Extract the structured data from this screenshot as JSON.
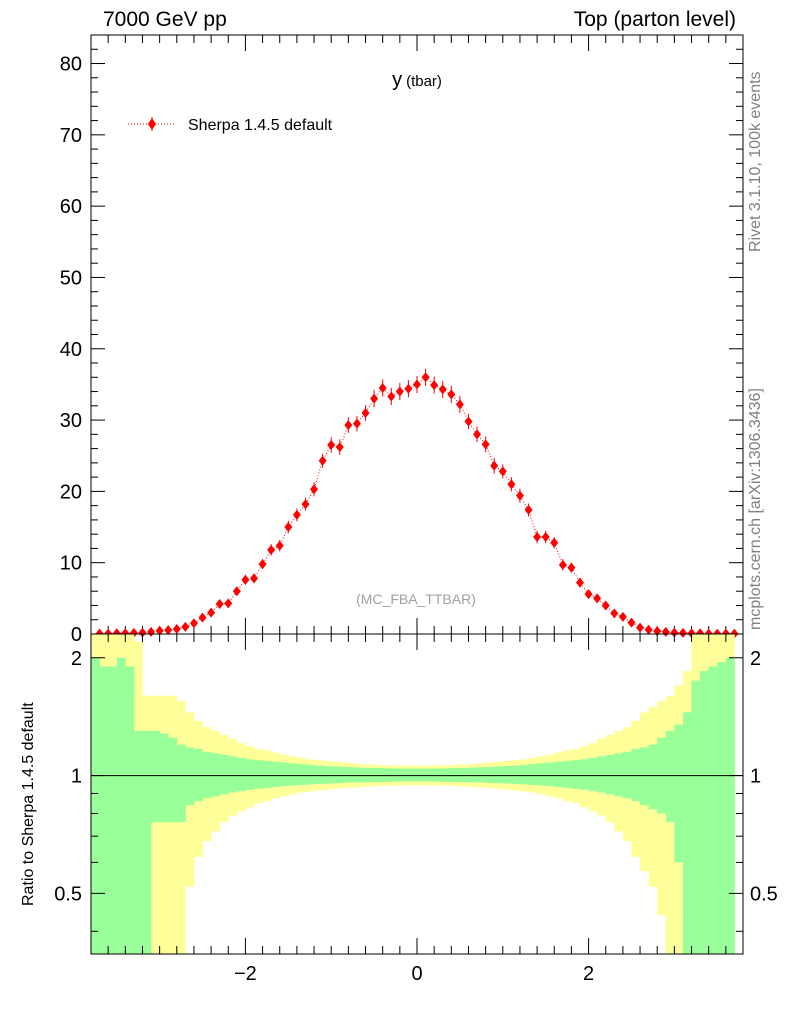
{
  "header": {
    "left": "7000 GeV pp",
    "right": "Top (parton level)"
  },
  "side_text": {
    "rivet": "Rivet 3.1.10,  100k events",
    "mcplots": "mcplots.cern.ch [arXiv:1306.3436]"
  },
  "chart_data": [
    {
      "type": "scatter",
      "title_main": "y",
      "title_sub": "(tbar)",
      "watermark": "(MC_FBA_TTBAR)",
      "xlim": [
        -3.8,
        3.8
      ],
      "ylim": [
        0,
        84
      ],
      "xticks": [
        -2,
        0,
        2
      ],
      "yticks": [
        0,
        10,
        20,
        30,
        40,
        50,
        60,
        70,
        80
      ],
      "xtick_labels": [
        "−2",
        "0",
        "2"
      ],
      "ytick_labels": [
        "0",
        "10",
        "20",
        "30",
        "40",
        "50",
        "60",
        "70",
        "80"
      ],
      "legend_position": "top-left",
      "series": [
        {
          "name": "Sherpa 1.4.5 default",
          "color": "#ff0000",
          "marker": "diamond",
          "line": "dotted",
          "x": [
            -3.7,
            -3.6,
            -3.5,
            -3.4,
            -3.3,
            -3.2,
            -3.1,
            -3.0,
            -2.9,
            -2.8,
            -2.7,
            -2.6,
            -2.5,
            -2.4,
            -2.3,
            -2.2,
            -2.1,
            -2.0,
            -1.9,
            -1.8,
            -1.7,
            -1.6,
            -1.5,
            -1.4,
            -1.3,
            -1.2,
            -1.1,
            -1.0,
            -0.9,
            -0.8,
            -0.7,
            -0.6,
            -0.5,
            -0.4,
            -0.3,
            -0.2,
            -0.1,
            0.0,
            0.1,
            0.2,
            0.3,
            0.4,
            0.5,
            0.6,
            0.7,
            0.8,
            0.9,
            1.0,
            1.1,
            1.2,
            1.3,
            1.4,
            1.5,
            1.6,
            1.7,
            1.8,
            1.9,
            2.0,
            2.1,
            2.2,
            2.3,
            2.4,
            2.5,
            2.6,
            2.7,
            2.8,
            2.9,
            3.0,
            3.1,
            3.2,
            3.3,
            3.4,
            3.5,
            3.6,
            3.7
          ],
          "y": [
            0.05,
            0.05,
            0.1,
            0.1,
            0.15,
            0.2,
            0.3,
            0.45,
            0.55,
            0.7,
            1.0,
            1.5,
            2.3,
            3.0,
            4.2,
            4.3,
            6.0,
            7.6,
            7.8,
            9.8,
            11.8,
            12.4,
            15.0,
            16.7,
            18.2,
            20.3,
            24.3,
            26.5,
            26.2,
            29.3,
            29.5,
            31.0,
            33.0,
            34.5,
            33.3,
            34.0,
            34.4,
            35.0,
            36.0,
            34.9,
            34.3,
            33.6,
            32.2,
            29.8,
            28.0,
            26.6,
            23.6,
            22.8,
            21.0,
            19.4,
            17.4,
            13.6,
            13.6,
            12.8,
            9.7,
            9.3,
            7.2,
            5.6,
            5.0,
            4.0,
            2.9,
            2.4,
            1.6,
            0.9,
            0.6,
            0.4,
            0.3,
            0.2,
            0.15,
            0.1,
            0.1,
            0.05,
            0.05,
            0.05,
            0.05
          ],
          "yerr": [
            0.1,
            0.1,
            0.1,
            0.1,
            0.1,
            0.1,
            0.1,
            0.2,
            0.2,
            0.2,
            0.3,
            0.3,
            0.4,
            0.5,
            0.5,
            0.5,
            0.6,
            0.7,
            0.7,
            0.7,
            0.8,
            0.8,
            0.9,
            0.9,
            0.9,
            1.0,
            1.0,
            1.1,
            1.1,
            1.1,
            1.1,
            1.1,
            1.2,
            1.2,
            1.2,
            1.2,
            1.2,
            1.2,
            1.2,
            1.2,
            1.2,
            1.2,
            1.2,
            1.1,
            1.1,
            1.1,
            1.1,
            1.0,
            1.0,
            1.0,
            0.9,
            0.9,
            0.9,
            0.8,
            0.8,
            0.7,
            0.7,
            0.6,
            0.6,
            0.5,
            0.5,
            0.4,
            0.4,
            0.3,
            0.3,
            0.2,
            0.2,
            0.2,
            0.1,
            0.1,
            0.1,
            0.1,
            0.1,
            0.1,
            0.1
          ]
        }
      ]
    },
    {
      "type": "area",
      "ylabel": "Ratio to Sherpa 1.4.5 default",
      "ylog": true,
      "xlim": [
        -3.8,
        3.8
      ],
      "ylim": [
        0.35,
        2.3
      ],
      "yticks": [
        0.5,
        1,
        2
      ],
      "ytick_labels": [
        "0.5",
        "1",
        "2"
      ],
      "reference_line": 1,
      "bins": [
        -3.75,
        -3.65,
        -3.55,
        -3.45,
        -3.35,
        -3.25,
        -3.15,
        -3.05,
        -2.95,
        -2.85,
        -2.75,
        -2.65,
        -2.55,
        -2.45,
        -2.35,
        -2.25,
        -2.15,
        -2.05,
        -1.95,
        -1.85,
        -1.75,
        -1.65,
        -1.55,
        -1.45,
        -1.35,
        -1.25,
        -1.15,
        -1.05,
        -0.95,
        -0.85,
        -0.75,
        -0.65,
        -0.55,
        -0.45,
        -0.35,
        -0.25,
        -0.15,
        -0.05,
        0.05,
        0.15,
        0.25,
        0.35,
        0.45,
        0.55,
        0.65,
        0.75,
        0.85,
        0.95,
        1.05,
        1.15,
        1.25,
        1.35,
        1.45,
        1.55,
        1.65,
        1.75,
        1.85,
        1.95,
        2.05,
        2.15,
        2.25,
        2.35,
        2.45,
        2.55,
        2.65,
        2.75,
        2.85,
        2.95,
        3.05,
        3.15,
        3.25,
        3.35,
        3.45,
        3.55,
        3.65,
        3.75
      ],
      "bands": [
        {
          "name": "yellow",
          "color": "#ffff99",
          "upper": [
            2.3,
            2.3,
            2.3,
            2.3,
            2.3,
            2.2,
            1.6,
            1.6,
            1.6,
            1.6,
            1.55,
            1.45,
            1.38,
            1.33,
            1.3,
            1.27,
            1.24,
            1.21,
            1.19,
            1.17,
            1.16,
            1.145,
            1.13,
            1.12,
            1.11,
            1.1,
            1.095,
            1.09,
            1.085,
            1.08,
            1.075,
            1.07,
            1.068,
            1.065,
            1.063,
            1.062,
            1.061,
            1.06,
            1.06,
            1.061,
            1.062,
            1.063,
            1.065,
            1.068,
            1.07,
            1.075,
            1.08,
            1.085,
            1.09,
            1.095,
            1.1,
            1.11,
            1.12,
            1.13,
            1.145,
            1.16,
            1.17,
            1.19,
            1.21,
            1.24,
            1.27,
            1.3,
            1.33,
            1.38,
            1.45,
            1.5,
            1.55,
            1.6,
            1.7,
            1.85,
            2.3,
            2.3,
            2.3,
            2.3,
            2.3
          ],
          "lower": [
            0.35,
            0.35,
            0.35,
            0.35,
            0.35,
            0.35,
            0.35,
            0.35,
            0.35,
            0.35,
            0.35,
            0.52,
            0.62,
            0.68,
            0.72,
            0.76,
            0.79,
            0.81,
            0.83,
            0.85,
            0.86,
            0.875,
            0.885,
            0.895,
            0.905,
            0.91,
            0.915,
            0.92,
            0.925,
            0.93,
            0.932,
            0.935,
            0.937,
            0.94,
            0.942,
            0.943,
            0.944,
            0.945,
            0.945,
            0.944,
            0.943,
            0.942,
            0.94,
            0.937,
            0.935,
            0.932,
            0.93,
            0.925,
            0.92,
            0.915,
            0.91,
            0.905,
            0.895,
            0.885,
            0.875,
            0.86,
            0.85,
            0.83,
            0.81,
            0.79,
            0.76,
            0.72,
            0.68,
            0.62,
            0.57,
            0.52,
            0.44,
            0.35,
            0.35,
            0.35,
            0.35,
            0.35,
            0.35,
            0.35,
            0.35
          ]
        },
        {
          "name": "green",
          "color": "#99ff99",
          "upper": [
            2.0,
            1.9,
            1.9,
            2.0,
            1.9,
            1.3,
            1.3,
            1.3,
            1.28,
            1.25,
            1.2,
            1.18,
            1.17,
            1.15,
            1.14,
            1.13,
            1.12,
            1.11,
            1.1,
            1.095,
            1.09,
            1.085,
            1.08,
            1.075,
            1.07,
            1.065,
            1.06,
            1.058,
            1.055,
            1.052,
            1.05,
            1.048,
            1.046,
            1.045,
            1.044,
            1.043,
            1.042,
            1.042,
            1.042,
            1.042,
            1.043,
            1.044,
            1.045,
            1.046,
            1.048,
            1.05,
            1.052,
            1.055,
            1.058,
            1.06,
            1.065,
            1.07,
            1.075,
            1.08,
            1.085,
            1.09,
            1.095,
            1.1,
            1.11,
            1.12,
            1.13,
            1.14,
            1.15,
            1.17,
            1.18,
            1.2,
            1.25,
            1.3,
            1.35,
            1.45,
            1.75,
            1.85,
            1.9,
            1.95,
            2.0
          ],
          "lower": [
            0.35,
            0.35,
            0.35,
            0.35,
            0.35,
            0.35,
            0.35,
            0.76,
            0.76,
            0.76,
            0.76,
            0.84,
            0.86,
            0.875,
            0.885,
            0.895,
            0.905,
            0.912,
            0.92,
            0.925,
            0.93,
            0.935,
            0.94,
            0.943,
            0.946,
            0.949,
            0.952,
            0.954,
            0.956,
            0.958,
            0.96,
            0.961,
            0.962,
            0.963,
            0.964,
            0.965,
            0.966,
            0.966,
            0.966,
            0.966,
            0.965,
            0.964,
            0.963,
            0.962,
            0.961,
            0.96,
            0.958,
            0.956,
            0.954,
            0.952,
            0.949,
            0.946,
            0.943,
            0.94,
            0.935,
            0.93,
            0.925,
            0.92,
            0.912,
            0.905,
            0.895,
            0.885,
            0.875,
            0.86,
            0.84,
            0.82,
            0.8,
            0.76,
            0.6,
            0.35,
            0.35,
            0.35,
            0.35,
            0.35,
            0.35
          ]
        }
      ]
    }
  ]
}
